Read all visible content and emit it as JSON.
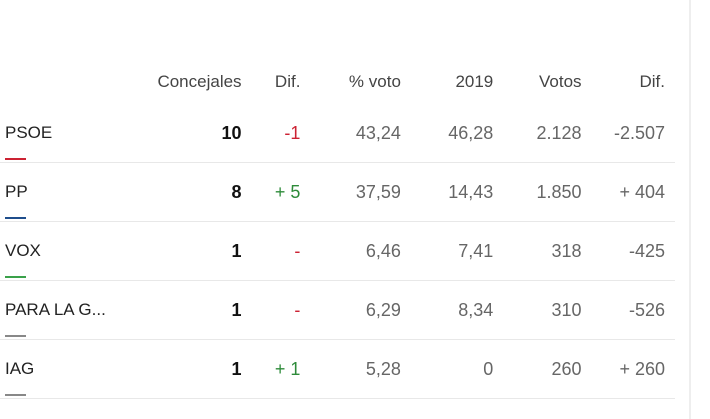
{
  "table": {
    "headers": [
      "Concejales",
      "Dif.",
      "% voto",
      "2019",
      "Votos",
      "Dif."
    ],
    "rows": [
      {
        "party": "PSOE",
        "color": "#cc2233",
        "seats": "10",
        "seats_diff": "-1",
        "seats_diff_type": "neg",
        "pct": "43,24",
        "y2019": "46,28",
        "votes": "2.128",
        "votes_diff": "-2.507"
      },
      {
        "party": "PP",
        "color": "#1f4e8c",
        "seats": "8",
        "seats_diff": "+ 5",
        "seats_diff_type": "pos",
        "pct": "37,59",
        "y2019": "14,43",
        "votes": "1.850",
        "votes_diff": "+ 404"
      },
      {
        "party": "VOX",
        "color": "#3aa14a",
        "seats": "1",
        "seats_diff": "-",
        "seats_diff_type": "none",
        "pct": "6,46",
        "y2019": "7,41",
        "votes": "318",
        "votes_diff": "-425"
      },
      {
        "party": "PARA LA G...",
        "color": "#888888",
        "seats": "1",
        "seats_diff": "-",
        "seats_diff_type": "none",
        "pct": "6,29",
        "y2019": "8,34",
        "votes": "310",
        "votes_diff": "-526"
      },
      {
        "party": "IAG",
        "color": "#888888",
        "seats": "1",
        "seats_diff": "+ 1",
        "seats_diff_type": "pos",
        "pct": "5,28",
        "y2019": "0",
        "votes": "260",
        "votes_diff": "+ 260"
      }
    ]
  }
}
